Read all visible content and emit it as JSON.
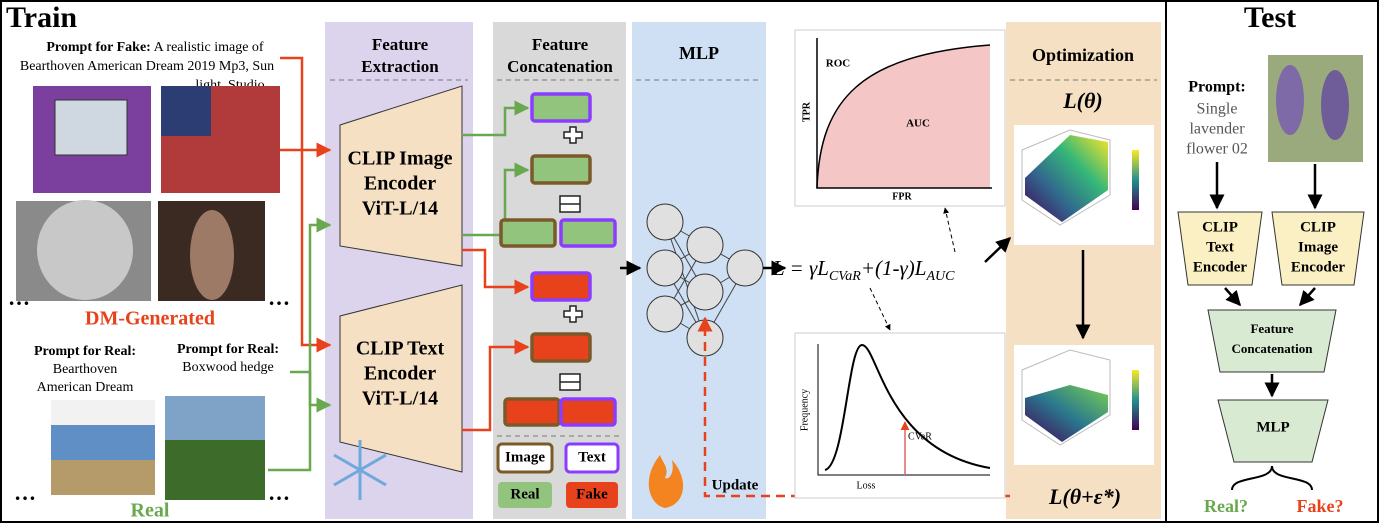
{
  "train": {
    "title": "Train",
    "fake_prompt": {
      "label": "Prompt for Fake:",
      "lines": [
        "A realistic image of",
        "Bearthoven American Dream 2019 Mp3, Sun",
        "light, Studio"
      ]
    },
    "dm_generated": "DM-Generated",
    "real_prompts": [
      {
        "label": "Prompt for Real:",
        "lines": [
          "Bearthoven",
          "American Dream"
        ]
      },
      {
        "label": "Prompt for Real:",
        "lines": [
          "Boxwood hedge"
        ]
      }
    ],
    "real": "Real",
    "columns": {
      "feature_extraction": [
        "Feature",
        "Extraction"
      ],
      "feature_concatenation": [
        "Feature",
        "Concatenation"
      ],
      "mlp": "MLP",
      "optimization": "Optimization"
    },
    "encoders": [
      [
        "CLIP Image",
        "Encoder",
        "ViT-L/14"
      ],
      [
        "CLIP Text",
        "Encoder",
        "ViT-L/14"
      ]
    ],
    "legend": {
      "image": "Image",
      "text": "Text",
      "real": "Real",
      "fake": "Fake"
    },
    "update": "Update",
    "roc": {
      "curve": "ROC",
      "area": "AUC",
      "y_axis": "TPR",
      "x_axis": "FPR"
    },
    "loss": {
      "lhs": "L = γL",
      "sub1": "CVaR",
      "mid": "+(1-γ)L",
      "sub2": "AUC"
    },
    "distribution": {
      "y_axis": "Frequency",
      "x_axis": "Loss",
      "marker": "CVaR"
    },
    "objective": "L(θ)",
    "perturbed_objective": "L(θ+ε*)"
  },
  "test": {
    "title": "Test",
    "prompt": {
      "label": "Prompt:",
      "lines": [
        "Single",
        "lavender",
        "flower 02"
      ]
    },
    "text_encoder": [
      "CLIP",
      "Text",
      "Encoder"
    ],
    "image_encoder": [
      "CLIP",
      "Image",
      "Encoder"
    ],
    "concatenation": [
      "Feature",
      "Concatenation"
    ],
    "mlp": "MLP",
    "outputs": [
      "Real?",
      "Fake?"
    ]
  }
}
